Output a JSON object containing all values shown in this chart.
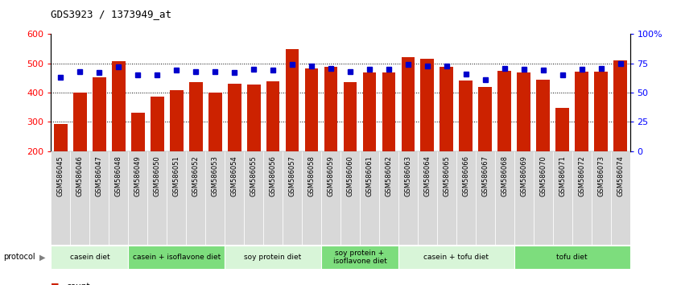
{
  "title": "GDS3923 / 1373949_at",
  "samples": [
    "GSM586045",
    "GSM586046",
    "GSM586047",
    "GSM586048",
    "GSM586049",
    "GSM586050",
    "GSM586051",
    "GSM586052",
    "GSM586053",
    "GSM586054",
    "GSM586055",
    "GSM586056",
    "GSM586057",
    "GSM586058",
    "GSM586059",
    "GSM586060",
    "GSM586061",
    "GSM586062",
    "GSM586063",
    "GSM586064",
    "GSM586065",
    "GSM586066",
    "GSM586067",
    "GSM586068",
    "GSM586069",
    "GSM586070",
    "GSM586071",
    "GSM586072",
    "GSM586073",
    "GSM586074"
  ],
  "counts": [
    293,
    401,
    452,
    507,
    330,
    387,
    408,
    437,
    400,
    430,
    428,
    439,
    548,
    484,
    487,
    435,
    470,
    470,
    522,
    515,
    487,
    441,
    420,
    474,
    470,
    443,
    349,
    472,
    473,
    510
  ],
  "percentile": [
    63,
    68,
    67,
    72,
    65,
    65,
    69,
    68,
    68,
    67,
    70,
    69,
    74,
    73,
    71,
    68,
    70,
    70,
    74,
    73,
    73,
    66,
    61,
    71,
    70,
    69,
    65,
    70,
    71,
    75
  ],
  "groups": [
    {
      "label": "casein diet",
      "start": 0,
      "end": 4,
      "color": "#d8f5d8"
    },
    {
      "label": "casein + isoflavone diet",
      "start": 4,
      "end": 9,
      "color": "#7ddd7d"
    },
    {
      "label": "soy protein diet",
      "start": 9,
      "end": 14,
      "color": "#d8f5d8"
    },
    {
      "label": "soy protein +\nisoflavone diet",
      "start": 14,
      "end": 18,
      "color": "#7ddd7d"
    },
    {
      "label": "casein + tofu diet",
      "start": 18,
      "end": 24,
      "color": "#d8f5d8"
    },
    {
      "label": "tofu diet",
      "start": 24,
      "end": 30,
      "color": "#7ddd7d"
    }
  ],
  "bar_color": "#cc2200",
  "dot_color": "#0000cc",
  "ylim_left": [
    200,
    600
  ],
  "ylim_right": [
    0,
    100
  ],
  "yticks_left": [
    200,
    300,
    400,
    500,
    600
  ],
  "yticks_right": [
    0,
    25,
    50,
    75,
    100
  ],
  "ytick_labels_right": [
    "0",
    "25",
    "50",
    "75",
    "100%"
  ],
  "grid_values": [
    300,
    400,
    500
  ],
  "background_color": "#ffffff",
  "label_bg_color": "#d8d8d8"
}
